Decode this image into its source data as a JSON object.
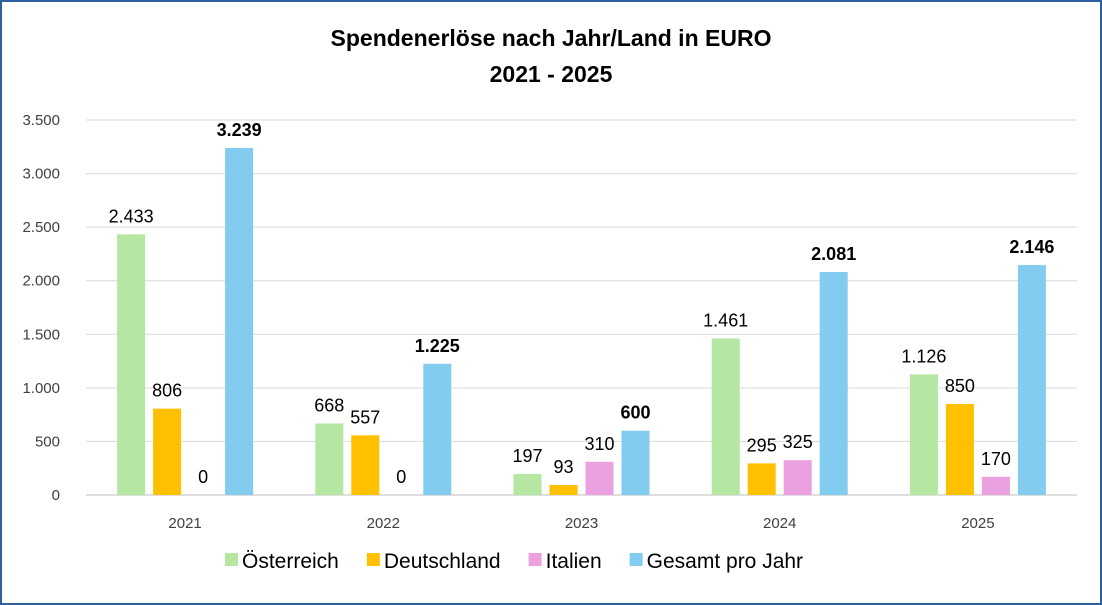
{
  "chart_data": {
    "type": "bar",
    "title": "Spendenerlöse nach Jahr/Land in EURO",
    "subtitle": "2021 - 2025",
    "xlabel": "",
    "ylabel": "",
    "ylim": [
      0,
      3500
    ],
    "yticks": [
      0,
      500,
      1000,
      1500,
      2000,
      2500,
      3000,
      3500
    ],
    "ytick_labels": [
      "0",
      "500",
      "1.000",
      "1.500",
      "2.000",
      "2.500",
      "3.000",
      "3.500"
    ],
    "grid": true,
    "legend_position": "bottom",
    "categories": [
      "2021",
      "2022",
      "2023",
      "2024",
      "2025"
    ],
    "series": [
      {
        "name": "Österreich",
        "color": "#b5e6a2",
        "values": [
          2433,
          668,
          197,
          1461,
          1126
        ],
        "labels": [
          "2.433",
          "668",
          "197",
          "1.461",
          "1.126"
        ],
        "bold": false
      },
      {
        "name": "Deutschland",
        "color": "#ffc000",
        "values": [
          806,
          557,
          93,
          295,
          850
        ],
        "labels": [
          "806",
          "557",
          "93",
          "295",
          "850"
        ],
        "bold": false
      },
      {
        "name": "Italien",
        "color": "#eba0e0",
        "values": [
          0,
          0,
          310,
          325,
          170
        ],
        "labels": [
          "0",
          "0",
          "310",
          "325",
          "170"
        ],
        "bold": false
      },
      {
        "name": "Gesamt pro Jahr",
        "color": "#82ccef",
        "values": [
          3239,
          1225,
          600,
          2081,
          2146
        ],
        "labels": [
          "3.239",
          "1.225",
          "600",
          "2.081",
          "2.146"
        ],
        "bold": true
      }
    ]
  }
}
